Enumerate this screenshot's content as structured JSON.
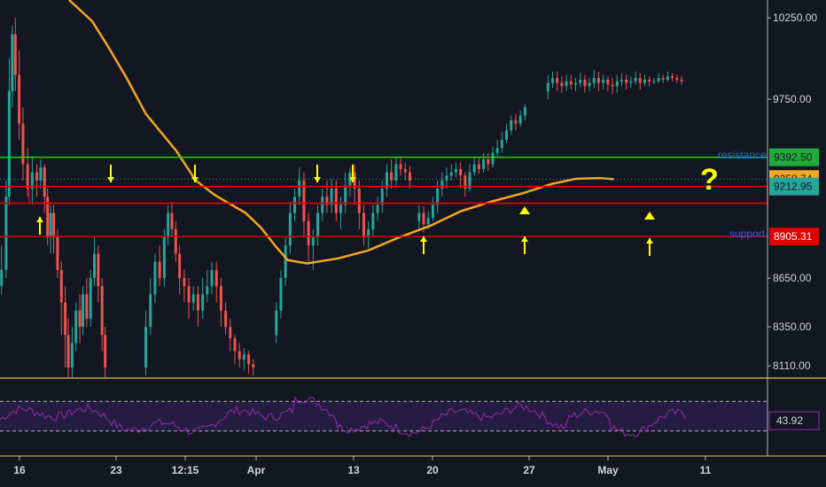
{
  "chart_data": {
    "type": "candlestick",
    "title": "",
    "y_axis": {
      "position": "right",
      "tick_labels": [
        "10250.00",
        "9750.00",
        "8650.00",
        "8350.00",
        "8110.00"
      ],
      "ylim": [
        8040,
        10360
      ]
    },
    "x_axis": {
      "tick_labels": [
        "16",
        "23",
        "12:15",
        "Apr",
        "13",
        "20",
        "27",
        "May",
        "11"
      ]
    },
    "price_labels": [
      {
        "value": 9392.5,
        "text": "9392.50",
        "color": "#22ab3c"
      },
      {
        "value": 9258.74,
        "text": "9258.74",
        "color": "#f5a623"
      },
      {
        "value": 9212.95,
        "text": "9212.95",
        "color": "#26a69a"
      },
      {
        "value": 8905.31,
        "text": "8905.31",
        "color": "#e00000"
      }
    ],
    "horizontal_lines": [
      {
        "name": "resistance",
        "value": 9392.5,
        "color": "#00e000"
      },
      {
        "name": "zone-top",
        "value": 9212.95,
        "color": "#e00000"
      },
      {
        "name": "zone-bottom",
        "value": 9110.0,
        "color": "#e00000"
      },
      {
        "name": "support",
        "value": 8905.31,
        "color": "#e00000"
      }
    ],
    "annotations": {
      "resistance": "resistance",
      "support": "support",
      "question": "?"
    },
    "moving_average": {
      "color": "#f5a623",
      "values": [
        [
          0.09,
          10360
        ],
        [
          0.12,
          10230
        ],
        [
          0.14,
          10080
        ],
        [
          0.165,
          9880
        ],
        [
          0.19,
          9660
        ],
        [
          0.23,
          9430
        ],
        [
          0.255,
          9250
        ],
        [
          0.28,
          9160
        ],
        [
          0.32,
          9050
        ],
        [
          0.34,
          8960
        ],
        [
          0.36,
          8840
        ],
        [
          0.375,
          8760
        ],
        [
          0.4,
          8740
        ],
        [
          0.44,
          8770
        ],
        [
          0.48,
          8820
        ],
        [
          0.52,
          8900
        ],
        [
          0.56,
          8970
        ],
        [
          0.6,
          9060
        ],
        [
          0.64,
          9120
        ],
        [
          0.68,
          9170
        ],
        [
          0.72,
          9230
        ],
        [
          0.75,
          9260
        ],
        [
          0.78,
          9265
        ],
        [
          0.8,
          9258
        ]
      ]
    },
    "candles": [
      [
        0.002,
        8600,
        8700,
        8850,
        8550
      ],
      [
        0.008,
        8700,
        9150,
        9250,
        8650
      ],
      [
        0.012,
        9150,
        9800,
        10000,
        9100
      ],
      [
        0.016,
        9800,
        10150,
        10200,
        9700
      ],
      [
        0.02,
        10150,
        9900,
        10250,
        9800
      ],
      [
        0.025,
        9900,
        9600,
        10050,
        9500
      ],
      [
        0.03,
        9600,
        9350,
        9700,
        9250
      ],
      [
        0.036,
        9350,
        9200,
        9450,
        9150
      ],
      [
        0.042,
        9200,
        9300,
        9400,
        9100
      ],
      [
        0.048,
        9300,
        9250,
        9350,
        9150
      ],
      [
        0.053,
        9250,
        9330,
        9380,
        9200
      ],
      [
        0.058,
        9330,
        9150,
        9350,
        9050
      ],
      [
        0.062,
        9150,
        8900,
        9200,
        8850
      ],
      [
        0.066,
        8900,
        9050,
        9100,
        8800
      ],
      [
        0.07,
        9050,
        8900,
        9100,
        8800
      ],
      [
        0.075,
        8900,
        8700,
        8950,
        8650
      ],
      [
        0.08,
        8700,
        8500,
        8750,
        8300
      ],
      [
        0.085,
        8500,
        8300,
        8600,
        8100
      ],
      [
        0.089,
        8300,
        8100,
        8400,
        8040
      ],
      [
        0.094,
        8100,
        8250,
        8350,
        8040
      ],
      [
        0.099,
        8250,
        8450,
        8500,
        8200
      ],
      [
        0.104,
        8450,
        8350,
        8550,
        8250
      ],
      [
        0.108,
        8350,
        8550,
        8600,
        8300
      ],
      [
        0.113,
        8550,
        8400,
        8650,
        8350
      ],
      [
        0.118,
        8400,
        8650,
        8700,
        8350
      ],
      [
        0.123,
        8650,
        8800,
        8900,
        8600
      ],
      [
        0.128,
        8800,
        8600,
        8850,
        8500
      ],
      [
        0.133,
        8600,
        8300,
        8650,
        8200
      ],
      [
        0.137,
        8300,
        8100,
        8350,
        8040
      ],
      [
        0.19,
        8100,
        8350,
        8450,
        8050
      ],
      [
        0.196,
        8350,
        8550,
        8650,
        8300
      ],
      [
        0.202,
        8550,
        8750,
        8800,
        8500
      ],
      [
        0.208,
        8750,
        8650,
        8850,
        8600
      ],
      [
        0.214,
        8650,
        8900,
        8950,
        8600
      ],
      [
        0.219,
        8900,
        9050,
        9100,
        8850
      ],
      [
        0.224,
        9050,
        8950,
        9120,
        8900
      ],
      [
        0.229,
        8950,
        8800,
        9000,
        8750
      ],
      [
        0.234,
        8800,
        8650,
        8850,
        8550
      ],
      [
        0.24,
        8650,
        8600,
        8700,
        8500
      ],
      [
        0.246,
        8600,
        8500,
        8650,
        8400
      ],
      [
        0.252,
        8500,
        8550,
        8600,
        8450
      ],
      [
        0.258,
        8550,
        8450,
        8600,
        8350
      ],
      [
        0.264,
        8450,
        8550,
        8650,
        8400
      ],
      [
        0.27,
        8550,
        8600,
        8700,
        8500
      ],
      [
        0.276,
        8600,
        8700,
        8750,
        8550
      ],
      [
        0.282,
        8700,
        8600,
        8750,
        8500
      ],
      [
        0.288,
        8600,
        8450,
        8650,
        8350
      ],
      [
        0.294,
        8450,
        8350,
        8500,
        8300
      ],
      [
        0.3,
        8350,
        8280,
        8400,
        8200
      ],
      [
        0.306,
        8280,
        8200,
        8300,
        8120
      ],
      [
        0.312,
        8200,
        8150,
        8250,
        8100
      ],
      [
        0.318,
        8150,
        8180,
        8220,
        8080
      ],
      [
        0.324,
        8180,
        8120,
        8200,
        8060
      ],
      [
        0.33,
        8120,
        8100,
        8150,
        8050
      ],
      [
        0.36,
        8300,
        8450,
        8500,
        8250
      ],
      [
        0.366,
        8450,
        8650,
        8700,
        8400
      ],
      [
        0.372,
        8650,
        8850,
        8900,
        8600
      ],
      [
        0.378,
        8850,
        9050,
        9120,
        8800
      ],
      [
        0.384,
        9050,
        9150,
        9200,
        9000
      ],
      [
        0.39,
        9150,
        9250,
        9330,
        9100
      ],
      [
        0.396,
        9250,
        9000,
        9300,
        8900
      ],
      [
        0.402,
        9000,
        8850,
        9050,
        8750
      ],
      [
        0.408,
        8850,
        8900,
        8950,
        8700
      ],
      [
        0.414,
        8900,
        9050,
        9100,
        8850
      ],
      [
        0.42,
        9050,
        9150,
        9200,
        9000
      ],
      [
        0.426,
        9150,
        9100,
        9250,
        9050
      ],
      [
        0.432,
        9100,
        9200,
        9260,
        9050
      ],
      [
        0.438,
        9200,
        9050,
        9250,
        9000
      ],
      [
        0.444,
        9050,
        9100,
        9150,
        8950
      ],
      [
        0.45,
        9100,
        9220,
        9300,
        9050
      ],
      [
        0.456,
        9220,
        9300,
        9330,
        9150
      ],
      [
        0.462,
        9300,
        9200,
        9350,
        9100
      ],
      [
        0.468,
        9200,
        9050,
        9250,
        8950
      ],
      [
        0.474,
        9050,
        8900,
        9100,
        8850
      ],
      [
        0.48,
        8900,
        8950,
        9000,
        8830
      ],
      [
        0.486,
        8950,
        9050,
        9100,
        8900
      ],
      [
        0.492,
        9050,
        9100,
        9150,
        9000
      ],
      [
        0.498,
        9100,
        9200,
        9250,
        9050
      ],
      [
        0.504,
        9200,
        9300,
        9350,
        9150
      ],
      [
        0.51,
        9300,
        9250,
        9380,
        9200
      ],
      [
        0.516,
        9250,
        9350,
        9400,
        9220
      ],
      [
        0.522,
        9350,
        9320,
        9400,
        9280
      ],
      [
        0.528,
        9320,
        9300,
        9360,
        9250
      ],
      [
        0.534,
        9300,
        9250,
        9340,
        9200
      ],
      [
        0.546,
        9000,
        9050,
        9100,
        8950
      ],
      [
        0.552,
        9050,
        8980,
        9090,
        8930
      ],
      [
        0.558,
        8980,
        9020,
        9060,
        8950
      ],
      [
        0.564,
        9020,
        9100,
        9150,
        9000
      ],
      [
        0.57,
        9100,
        9200,
        9250,
        9050
      ],
      [
        0.576,
        9200,
        9250,
        9300,
        9150
      ],
      [
        0.582,
        9250,
        9280,
        9330,
        9200
      ],
      [
        0.588,
        9280,
        9300,
        9350,
        9250
      ],
      [
        0.594,
        9300,
        9320,
        9360,
        9270
      ],
      [
        0.6,
        9320,
        9280,
        9360,
        9200
      ],
      [
        0.606,
        9280,
        9200,
        9300,
        9150
      ],
      [
        0.612,
        9200,
        9300,
        9350,
        9180
      ],
      [
        0.618,
        9300,
        9350,
        9400,
        9280
      ],
      [
        0.624,
        9350,
        9320,
        9390,
        9290
      ],
      [
        0.63,
        9320,
        9380,
        9420,
        9300
      ],
      [
        0.636,
        9380,
        9350,
        9420,
        9310
      ],
      [
        0.642,
        9350,
        9420,
        9460,
        9330
      ],
      [
        0.648,
        9420,
        9450,
        9500,
        9400
      ],
      [
        0.654,
        9450,
        9500,
        9550,
        9420
      ],
      [
        0.66,
        9500,
        9560,
        9600,
        9480
      ],
      [
        0.666,
        9560,
        9620,
        9650,
        9530
      ],
      [
        0.672,
        9620,
        9600,
        9660,
        9560
      ],
      [
        0.678,
        9600,
        9650,
        9680,
        9580
      ],
      [
        0.684,
        9650,
        9700,
        9720,
        9620
      ],
      [
        0.714,
        9800,
        9850,
        9900,
        9750
      ],
      [
        0.72,
        9850,
        9880,
        9920,
        9820
      ],
      [
        0.726,
        9880,
        9850,
        9920,
        9800
      ],
      [
        0.732,
        9850,
        9830,
        9890,
        9790
      ],
      [
        0.738,
        9830,
        9860,
        9900,
        9800
      ],
      [
        0.744,
        9860,
        9840,
        9900,
        9810
      ],
      [
        0.75,
        9840,
        9850,
        9880,
        9800
      ],
      [
        0.756,
        9850,
        9870,
        9910,
        9820
      ],
      [
        0.762,
        9870,
        9830,
        9900,
        9790
      ],
      [
        0.768,
        9830,
        9850,
        9880,
        9800
      ],
      [
        0.774,
        9850,
        9880,
        9930,
        9820
      ],
      [
        0.78,
        9880,
        9850,
        9920,
        9800
      ],
      [
        0.786,
        9850,
        9870,
        9900,
        9810
      ],
      [
        0.792,
        9870,
        9840,
        9890,
        9800
      ],
      [
        0.798,
        9840,
        9830,
        9880,
        9780
      ],
      [
        0.804,
        9830,
        9860,
        9900,
        9790
      ],
      [
        0.81,
        9860,
        9870,
        9910,
        9830
      ],
      [
        0.816,
        9870,
        9850,
        9900,
        9810
      ],
      [
        0.822,
        9850,
        9860,
        9890,
        9820
      ],
      [
        0.828,
        9860,
        9880,
        9920,
        9840
      ],
      [
        0.834,
        9880,
        9850,
        9910,
        9810
      ],
      [
        0.84,
        9850,
        9870,
        9900,
        9830
      ],
      [
        0.846,
        9870,
        9860,
        9890,
        9830
      ],
      [
        0.852,
        9860,
        9860,
        9880,
        9840
      ],
      [
        0.858,
        9860,
        9880,
        9910,
        9850
      ],
      [
        0.864,
        9880,
        9870,
        9900,
        9850
      ],
      [
        0.87,
        9870,
        9890,
        9920,
        9860
      ],
      [
        0.876,
        9890,
        9880,
        9910,
        9860
      ],
      [
        0.882,
        9880,
        9870,
        9900,
        9850
      ],
      [
        0.888,
        9870,
        9860,
        9890,
        9840
      ]
    ]
  },
  "rsi": {
    "value_label": "43.92",
    "upper": 70,
    "lower": 30,
    "color": "#9c27b0"
  },
  "colors": {
    "background": "#131722",
    "up": "#26a69a",
    "down": "#ef5350",
    "arrow": "#ffff00",
    "axis_border": "#b2b5be"
  }
}
